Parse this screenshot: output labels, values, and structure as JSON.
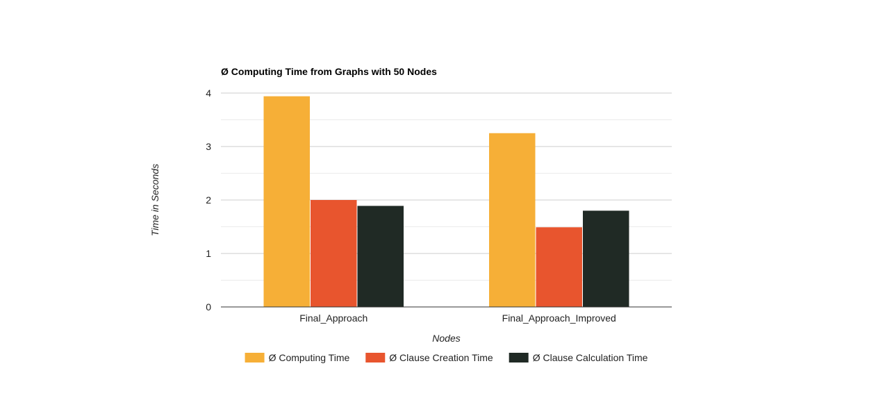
{
  "chart_data": {
    "type": "bar",
    "title": "Ø Computing Time from Graphs with 50 Nodes",
    "xlabel": "Nodes",
    "ylabel": "Time in Seconds",
    "categories": [
      "Final_Approach",
      "Final_Approach_Improved"
    ],
    "series": [
      {
        "name": "Ø Computing Time",
        "color": "#F6AF37",
        "values": [
          3.94,
          3.25
        ]
      },
      {
        "name": "Ø Clause Creation Time",
        "color": "#E8552E",
        "values": [
          2.0,
          1.49
        ]
      },
      {
        "name": "Ø Clause Calculation Time",
        "color": "#202A25",
        "values": [
          1.89,
          1.8
        ]
      }
    ],
    "ylim": [
      0,
      4
    ],
    "yticks": [
      0,
      1,
      2,
      3,
      4
    ],
    "grid": true,
    "minor_grid": true,
    "legend_position": "bottom"
  }
}
